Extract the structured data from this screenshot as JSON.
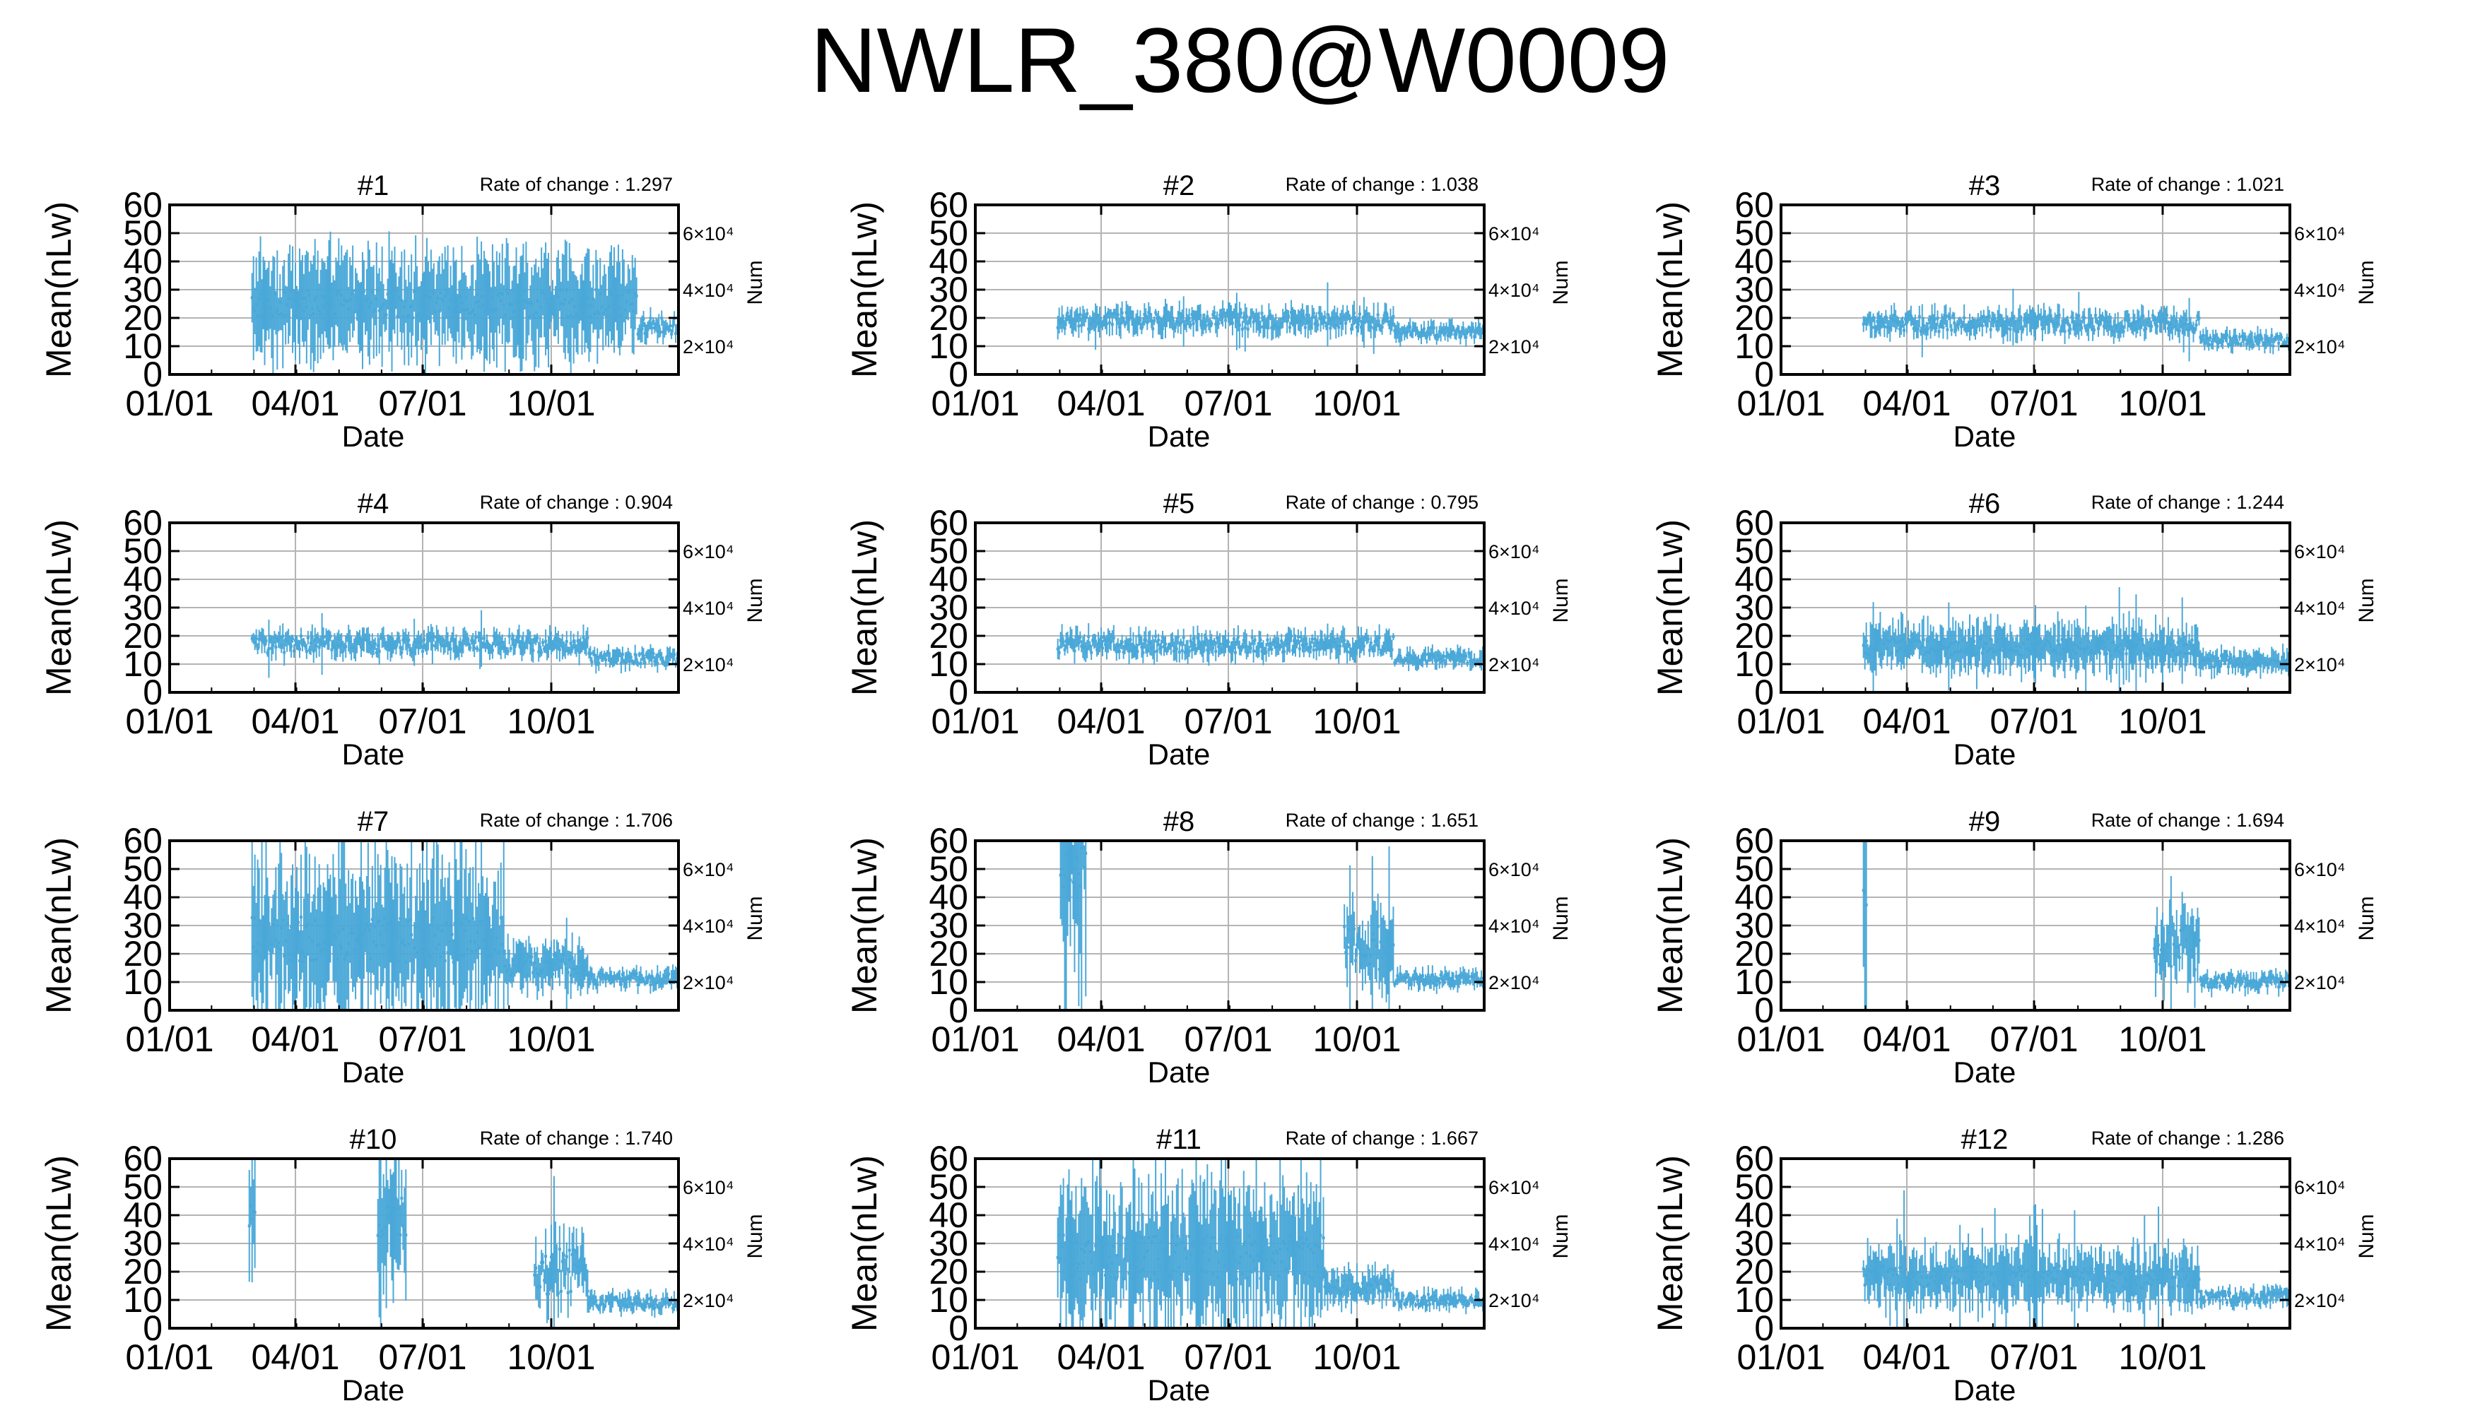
{
  "page": {
    "title": "NWLR_380@W0009",
    "series_color": "#4aa8d8",
    "grid_color": "#b4b4b4"
  },
  "chart_data": [
    {
      "type": "errorbar",
      "title": "#1",
      "rate_label": "Rate of change : 1.297",
      "xlabel": "Date",
      "ylabel": "Mean(nLw)",
      "y2label": "Num",
      "xticks": [
        "01/01",
        "04/01",
        "07/01",
        "10/01"
      ],
      "yticks": [
        0,
        10,
        20,
        30,
        40,
        50,
        60
      ],
      "y2ticks": [
        "2×10⁴",
        "4×10⁴",
        "6×10⁴"
      ],
      "ylim": [
        0,
        60
      ],
      "xlim": [
        1,
        365
      ],
      "grid": true,
      "x_start": 60,
      "x_end": 365,
      "segments": [
        {
          "from": 60,
          "to": 335,
          "mean": 25,
          "spread": 18,
          "var": 5,
          "spike": 0
        },
        {
          "from": 336,
          "to": 365,
          "mean": 17,
          "spread": 4,
          "var": 3,
          "spike": 0
        }
      ]
    },
    {
      "type": "errorbar",
      "title": "#2",
      "rate_label": "Rate of change : 1.038",
      "xlabel": "Date",
      "ylabel": "Mean(nLw)",
      "y2label": "Num",
      "xticks": [
        "01/01",
        "04/01",
        "07/01",
        "10/01"
      ],
      "yticks": [
        0,
        10,
        20,
        30,
        40,
        50,
        60
      ],
      "y2ticks": [
        "2×10⁴",
        "4×10⁴",
        "6×10⁴"
      ],
      "ylim": [
        0,
        60
      ],
      "xlim": [
        1,
        365
      ],
      "grid": true,
      "x_start": 60,
      "x_end": 365,
      "segments": [
        {
          "from": 60,
          "to": 300,
          "mean": 19,
          "spread": 4,
          "var": 3,
          "spike": 0.05
        },
        {
          "from": 301,
          "to": 365,
          "mean": 15,
          "spread": 3,
          "var": 2,
          "spike": 0
        }
      ]
    },
    {
      "type": "errorbar",
      "title": "#3",
      "rate_label": "Rate of change : 1.021",
      "xlabel": "Date",
      "ylabel": "Mean(nLw)",
      "y2label": "Num",
      "xticks": [
        "01/01",
        "04/01",
        "07/01",
        "10/01"
      ],
      "yticks": [
        0,
        10,
        20,
        30,
        40,
        50,
        60
      ],
      "y2ticks": [
        "2×10⁴",
        "4×10⁴",
        "6×10⁴"
      ],
      "ylim": [
        0,
        60
      ],
      "xlim": [
        1,
        365
      ],
      "grid": true,
      "x_start": 60,
      "x_end": 365,
      "segments": [
        {
          "from": 60,
          "to": 300,
          "mean": 18,
          "spread": 4,
          "var": 3,
          "spike": 0.04
        },
        {
          "from": 301,
          "to": 365,
          "mean": 12,
          "spread": 3,
          "var": 2,
          "spike": 0
        }
      ]
    },
    {
      "type": "errorbar",
      "title": "#4",
      "rate_label": "Rate of change : 0.904",
      "xlabel": "Date",
      "ylabel": "Mean(nLw)",
      "y2label": "Num",
      "xticks": [
        "01/01",
        "04/01",
        "07/01",
        "10/01"
      ],
      "yticks": [
        0,
        10,
        20,
        30,
        40,
        50,
        60
      ],
      "y2ticks": [
        "2×10⁴",
        "4×10⁴",
        "6×10⁴"
      ],
      "ylim": [
        0,
        60
      ],
      "xlim": [
        1,
        365
      ],
      "grid": true,
      "x_start": 60,
      "x_end": 365,
      "segments": [
        {
          "from": 60,
          "to": 300,
          "mean": 17,
          "spread": 4,
          "var": 3,
          "spike": 0.02
        },
        {
          "from": 301,
          "to": 365,
          "mean": 12,
          "spread": 3,
          "var": 2,
          "spike": 0
        }
      ]
    },
    {
      "type": "errorbar",
      "title": "#5",
      "rate_label": "Rate of change : 0.795",
      "xlabel": "Date",
      "ylabel": "Mean(nLw)",
      "y2label": "Num",
      "xticks": [
        "01/01",
        "04/01",
        "07/01",
        "10/01"
      ],
      "yticks": [
        0,
        10,
        20,
        30,
        40,
        50,
        60
      ],
      "y2ticks": [
        "2×10⁴",
        "4×10⁴",
        "6×10⁴"
      ],
      "ylim": [
        0,
        60
      ],
      "xlim": [
        1,
        365
      ],
      "grid": true,
      "x_start": 60,
      "x_end": 365,
      "segments": [
        {
          "from": 60,
          "to": 300,
          "mean": 17,
          "spread": 4,
          "var": 3,
          "spike": 0.02
        },
        {
          "from": 301,
          "to": 365,
          "mean": 12,
          "spread": 3,
          "var": 2,
          "spike": 0
        }
      ]
    },
    {
      "type": "errorbar",
      "title": "#6",
      "rate_label": "Rate of change : 1.244",
      "xlabel": "Date",
      "ylabel": "Mean(nLw)",
      "y2label": "Num",
      "xticks": [
        "01/01",
        "04/01",
        "07/01",
        "10/01"
      ],
      "yticks": [
        0,
        10,
        20,
        30,
        40,
        50,
        60
      ],
      "y2ticks": [
        "2×10⁴",
        "4×10⁴",
        "6×10⁴"
      ],
      "ylim": [
        0,
        60
      ],
      "xlim": [
        1,
        365
      ],
      "grid": true,
      "x_start": 60,
      "x_end": 365,
      "segments": [
        {
          "from": 60,
          "to": 300,
          "mean": 16,
          "spread": 8,
          "var": 3,
          "spike": 0.08
        },
        {
          "from": 301,
          "to": 365,
          "mean": 11,
          "spread": 4,
          "var": 2,
          "spike": 0
        }
      ]
    },
    {
      "type": "errorbar",
      "title": "#7",
      "rate_label": "Rate of change : 1.706",
      "xlabel": "Date",
      "ylabel": "Mean(nLw)",
      "y2label": "Num",
      "xticks": [
        "01/01",
        "04/01",
        "07/01",
        "10/01"
      ],
      "yticks": [
        0,
        10,
        20,
        30,
        40,
        50,
        60
      ],
      "y2ticks": [
        "2×10⁴",
        "4×10⁴",
        "6×10⁴"
      ],
      "ylim": [
        0,
        60
      ],
      "xlim": [
        1,
        365
      ],
      "grid": true,
      "x_start": 60,
      "x_end": 365,
      "segments": [
        {
          "from": 60,
          "to": 240,
          "mean": 25,
          "spread": 25,
          "var": 8,
          "spike": 0.1
        },
        {
          "from": 241,
          "to": 300,
          "mean": 16,
          "spread": 8,
          "var": 4,
          "spike": 0.05
        },
        {
          "from": 301,
          "to": 365,
          "mean": 11,
          "spread": 3,
          "var": 2,
          "spike": 0
        }
      ]
    },
    {
      "type": "errorbar",
      "title": "#8",
      "rate_label": "Rate of change : 1.651",
      "xlabel": "Date",
      "ylabel": "Mean(nLw)",
      "y2label": "Num",
      "xticks": [
        "01/01",
        "04/01",
        "07/01",
        "10/01"
      ],
      "yticks": [
        0,
        10,
        20,
        30,
        40,
        50,
        60
      ],
      "y2ticks": [
        "2×10⁴",
        "4×10⁴",
        "6×10⁴"
      ],
      "ylim": [
        0,
        60
      ],
      "xlim": [
        1,
        365
      ],
      "grid": true,
      "x_start": 60,
      "x_end": 365,
      "segments": [
        {
          "from": 62,
          "to": 80,
          "mean": 50,
          "spread": 20,
          "var": 8,
          "spike": 0.3
        },
        {
          "from": 265,
          "to": 300,
          "mean": 22,
          "spread": 12,
          "var": 8,
          "spike": 0.1
        },
        {
          "from": 301,
          "to": 365,
          "mean": 11,
          "spread": 3,
          "var": 2,
          "spike": 0
        }
      ]
    },
    {
      "type": "errorbar",
      "title": "#9",
      "rate_label": "Rate of change : 1.694",
      "xlabel": "Date",
      "ylabel": "Mean(nLw)",
      "y2label": "Num",
      "xticks": [
        "01/01",
        "04/01",
        "07/01",
        "10/01"
      ],
      "yticks": [
        0,
        10,
        20,
        30,
        40,
        50,
        60
      ],
      "y2ticks": [
        "2×10⁴",
        "4×10⁴",
        "6×10⁴"
      ],
      "ylim": [
        0,
        60
      ],
      "xlim": [
        1,
        365
      ],
      "grid": true,
      "x_start": 60,
      "x_end": 365,
      "segments": [
        {
          "from": 60,
          "to": 62,
          "mean": 40,
          "spread": 25,
          "var": 5,
          "spike": 0.5
        },
        {
          "from": 268,
          "to": 300,
          "mean": 22,
          "spread": 12,
          "var": 8,
          "spike": 0.1
        },
        {
          "from": 301,
          "to": 365,
          "mean": 10,
          "spread": 3,
          "var": 2,
          "spike": 0
        }
      ]
    },
    {
      "type": "errorbar",
      "title": "#10",
      "rate_label": "Rate of change : 1.740",
      "xlabel": "Date",
      "ylabel": "Mean(nLw)",
      "y2label": "Num",
      "xticks": [
        "01/01",
        "04/01",
        "07/01",
        "10/01"
      ],
      "yticks": [
        0,
        10,
        20,
        30,
        40,
        50,
        60
      ],
      "y2ticks": [
        "2×10⁴",
        "4×10⁴",
        "6×10⁴"
      ],
      "ylim": [
        0,
        60
      ],
      "xlim": [
        1,
        365
      ],
      "grid": true,
      "x_start": 60,
      "x_end": 365,
      "segments": [
        {
          "from": 58,
          "to": 62,
          "mean": 40,
          "spread": 20,
          "var": 5,
          "spike": 0.3
        },
        {
          "from": 150,
          "to": 170,
          "mean": 40,
          "spread": 20,
          "var": 8,
          "spike": 0.3
        },
        {
          "from": 262,
          "to": 300,
          "mean": 20,
          "spread": 10,
          "var": 8,
          "spike": 0.1
        },
        {
          "from": 301,
          "to": 365,
          "mean": 9,
          "spread": 3,
          "var": 2,
          "spike": 0
        }
      ]
    },
    {
      "type": "errorbar",
      "title": "#11",
      "rate_label": "Rate of change : 1.667",
      "xlabel": "Date",
      "ylabel": "Mean(nLw)",
      "y2label": "Num",
      "xticks": [
        "01/01",
        "04/01",
        "07/01",
        "10/01"
      ],
      "yticks": [
        0,
        10,
        20,
        30,
        40,
        50,
        60
      ],
      "y2ticks": [
        "2×10⁴",
        "4×10⁴",
        "6×10⁴"
      ],
      "ylim": [
        0,
        60
      ],
      "xlim": [
        1,
        365
      ],
      "grid": true,
      "x_start": 60,
      "x_end": 365,
      "segments": [
        {
          "from": 60,
          "to": 250,
          "mean": 25,
          "spread": 22,
          "var": 8,
          "spike": 0.15
        },
        {
          "from": 251,
          "to": 300,
          "mean": 15,
          "spread": 6,
          "var": 3,
          "spike": 0
        },
        {
          "from": 301,
          "to": 365,
          "mean": 10,
          "spread": 3,
          "var": 2,
          "spike": 0
        }
      ]
    },
    {
      "type": "errorbar",
      "title": "#12",
      "rate_label": "Rate of change : 1.286",
      "xlabel": "Date",
      "ylabel": "Mean(nLw)",
      "y2label": "Num",
      "xticks": [
        "01/01",
        "04/01",
        "07/01",
        "10/01"
      ],
      "yticks": [
        0,
        10,
        20,
        30,
        40,
        50,
        60
      ],
      "y2ticks": [
        "2×10⁴",
        "4×10⁴",
        "6×10⁴"
      ],
      "ylim": [
        0,
        60
      ],
      "xlim": [
        1,
        365
      ],
      "grid": true,
      "x_start": 60,
      "x_end": 365,
      "segments": [
        {
          "from": 60,
          "to": 300,
          "mean": 18,
          "spread": 10,
          "var": 4,
          "spike": 0.08
        },
        {
          "from": 301,
          "to": 365,
          "mean": 11,
          "spread": 3,
          "var": 2,
          "spike": 0
        }
      ]
    }
  ]
}
